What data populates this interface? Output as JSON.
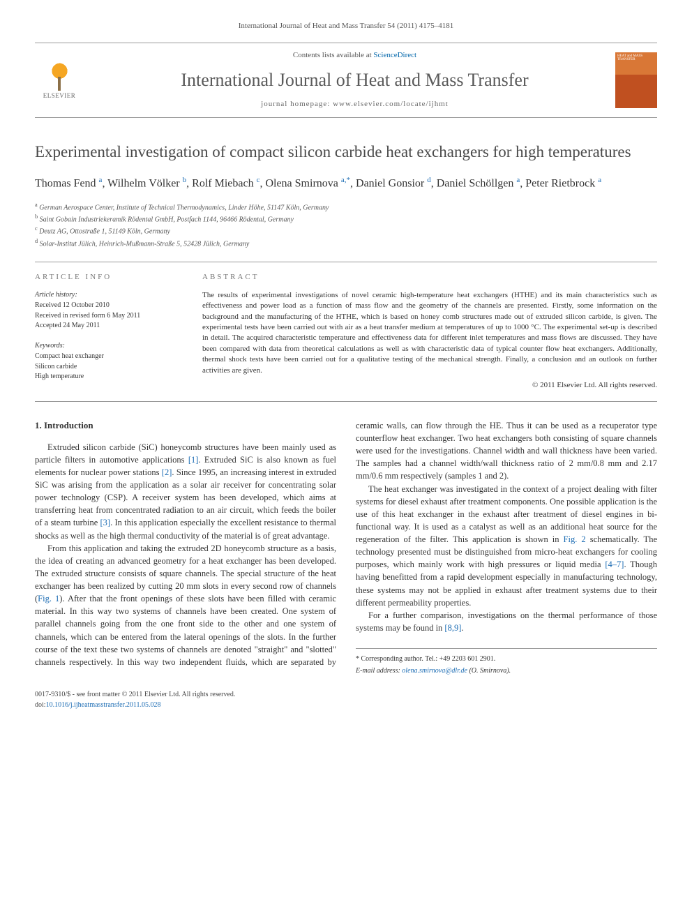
{
  "header": {
    "journal_ref": "International Journal of Heat and Mass Transfer 54 (2011) 4175–4181",
    "contents_prefix": "Contents lists available at ",
    "contents_link": "ScienceDirect",
    "journal_title": "International Journal of Heat and Mass Transfer",
    "homepage_prefix": "journal homepage: ",
    "homepage_url": "www.elsevier.com/locate/ijhmt",
    "publisher": "ELSEVIER",
    "cover_title": "HEAT and MASS TRANSFER"
  },
  "article": {
    "title": "Experimental investigation of compact silicon carbide heat exchangers for high temperatures",
    "authors_html": "Thomas Fend <sup>a</sup>, Wilhelm Völker <sup>b</sup>, Rolf Miebach <sup>c</sup>, Olena Smirnova <sup>a,*</sup>, Daniel Gonsior <sup>d</sup>, Daniel Schöllgen <sup>a</sup>, Peter Rietbrock <sup>a</sup>",
    "affiliations": [
      {
        "sup": "a",
        "text": "German Aerospace Center, Institute of Technical Thermodynamics, Linder Höhe, 51147 Köln, Germany"
      },
      {
        "sup": "b",
        "text": "Saint Gobain Industriekeramik Rödental GmbH, Postfach 1144, 96466 Rödental, Germany"
      },
      {
        "sup": "c",
        "text": "Deutz AG, Ottostraße 1, 51149 Köln, Germany"
      },
      {
        "sup": "d",
        "text": "Solar-Institut Jülich, Heinrich-Mußmann-Straße 5, 52428 Jülich, Germany"
      }
    ]
  },
  "meta": {
    "article_info_heading": "ARTICLE INFO",
    "abstract_heading": "ABSTRACT",
    "history_label": "Article history:",
    "history": [
      "Received 12 October 2010",
      "Received in revised form 6 May 2011",
      "Accepted 24 May 2011"
    ],
    "keywords_label": "Keywords:",
    "keywords": [
      "Compact heat exchanger",
      "Silicon carbide",
      "High temperature"
    ],
    "abstract": "The results of experimental investigations of novel ceramic high-temperature heat exchangers (HTHE) and its main characteristics such as effectiveness and power load as a function of mass flow and the geometry of the channels are presented. Firstly, some information on the background and the manufacturing of the HTHE, which is based on honey comb structures made out of extruded silicon carbide, is given. The experimental tests have been carried out with air as a heat transfer medium at temperatures of up to 1000 °C. The experimental set-up is described in detail. The acquired characteristic temperature and effectiveness data for different inlet temperatures and mass flows are discussed. They have been compared with data from theoretical calculations as well as with characteristic data of typical counter flow heat exchangers. Additionally, thermal shock tests have been carried out for a qualitative testing of the mechanical strength. Finally, a conclusion and an outlook on further activities are given.",
    "copyright": "© 2011 Elsevier Ltd. All rights reserved."
  },
  "body": {
    "section1_heading": "1. Introduction",
    "p1": "Extruded silicon carbide (SiC) honeycomb structures have been mainly used as particle filters in automotive applications [1]. Extruded SiC is also known as fuel elements for nuclear power stations [2]. Since 1995, an increasing interest in extruded SiC was arising from the application as a solar air receiver for concentrating solar power technology (CSP). A receiver system has been developed, which aims at transferring heat from concentrated radiation to an air circuit, which feeds the boiler of a steam turbine [3]. In this application especially the excellent resistance to thermal shocks as well as the high thermal conductivity of the material is of great advantage.",
    "p2": "From this application and taking the extruded 2D honeycomb structure as a basis, the idea of creating an advanced geometry for a heat exchanger has been developed. The extruded structure consists of square channels. The special structure of the heat exchanger has been realized by cutting 20 mm slots in every second row of channels (Fig. 1). After that the front openings of these slots have been filled with ceramic material. In this way two systems of channels have been created. One system of parallel channels going from the one front side to the other and one system of channels, which can be entered from the lateral openings of the slots. In the further course of the text these two systems of channels are denoted \"straight\" and \"slotted\" channels respectively. In this way two independent fluids, which are separated by ceramic walls, can flow through the HE. Thus it can be used as a recuperator type counterflow heat exchanger. Two heat exchangers both consisting of square channels were used for the investigations. Channel width and wall thickness have been varied. The samples had a channel width/wall thickness ratio of 2 mm/0.8 mm and 2.17 mm/0.6 mm respectively (samples 1 and 2).",
    "p3": "The heat exchanger was investigated in the context of a project dealing with filter systems for diesel exhaust after treatment components. One possible application is the use of this heat exchanger in the exhaust after treatment of diesel engines in bi-functional way. It is used as a catalyst as well as an additional heat source for the regeneration of the filter. This application is shown in Fig. 2 schematically. The technology presented must be distinguished from micro-heat exchangers for cooling purposes, which mainly work with high pressures or liquid media [4–7]. Though having benefitted from a rapid development especially in manufacturing technology, these systems may not be applied in exhaust after treatment systems due to their different permeability properties.",
    "p4": "For a further comparison, investigations on the thermal performance of those systems may be found in [8,9]."
  },
  "footer": {
    "corr_marker": "*",
    "corr_text": "Corresponding author. Tel.: +49 2203 601 2901.",
    "email_label": "E-mail address:",
    "email": "olena.smirnova@dlr.de",
    "email_person": "(O. Smirnova).",
    "issn_line": "0017-9310/$ - see front matter © 2011 Elsevier Ltd. All rights reserved.",
    "doi_prefix": "doi:",
    "doi": "10.1016/j.ijheatmasstransfer.2011.05.028"
  },
  "colors": {
    "link": "#1a6bb3",
    "text": "#333333",
    "muted": "#777777",
    "rule": "#999999",
    "cover_top": "#d97736",
    "cover_bottom": "#c05020"
  },
  "refs": {
    "r1": "[1]",
    "r2": "[2]",
    "r3": "[3]",
    "fig1": "Fig. 1",
    "fig2": "Fig. 2",
    "r47": "[4–7]",
    "r89": "[8,9]"
  }
}
